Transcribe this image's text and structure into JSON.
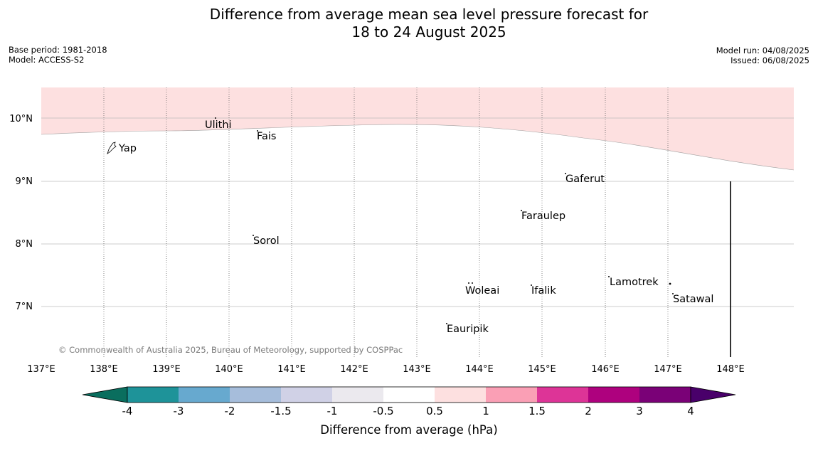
{
  "title_line1": "Difference from average mean sea level pressure forecast for",
  "title_line2": "18 to 24 August 2025",
  "base_period": "Base period: 1981-2018",
  "model": "Model: ACCESS-S2",
  "model_run": "Model run: 04/08/2025",
  "issued": "Issued: 06/08/2025",
  "copyright": "© Commonwealth of Australia 2025, Bureau of Meteorology, supported by COSPPac",
  "x_ticks": [
    "137°E",
    "138°E",
    "139°E",
    "140°E",
    "141°E",
    "142°E",
    "143°E",
    "144°E",
    "145°E",
    "146°E",
    "147°E",
    "148°E"
  ],
  "y_ticks": [
    "10°N",
    "9°N",
    "8°N",
    "7°N"
  ],
  "places": {
    "ulithi": "Ulithi",
    "yap": "Yap",
    "fais": "Fais",
    "gaferut": "Gaferut",
    "faraulep": "Faraulep",
    "sorol": "Sorol",
    "lamotrek": "Lamotrek",
    "woleai": "Woleai",
    "ifalik": "Ifalik",
    "satawal": "Satawal",
    "eauripik": "Eauripik"
  },
  "colorbar": {
    "title": "Difference from average (hPa)",
    "ticks": [
      "-4",
      "-3",
      "-2",
      "-1.5",
      "-1",
      "-0.5",
      "0.5",
      "1",
      "1.5",
      "2",
      "3",
      "4"
    ],
    "colors": [
      "#0a6e5e",
      "#1e9399",
      "#67a9cf",
      "#a6bddb",
      "#d0d1e6",
      "#ebe9ee",
      "#ffffff",
      "#fde0e0",
      "#fa9fb5",
      "#dd3497",
      "#ae017e",
      "#7a0177",
      "#49006a"
    ]
  },
  "shading": {
    "band": "0.5 to 1",
    "color": "#fde0e0"
  }
}
